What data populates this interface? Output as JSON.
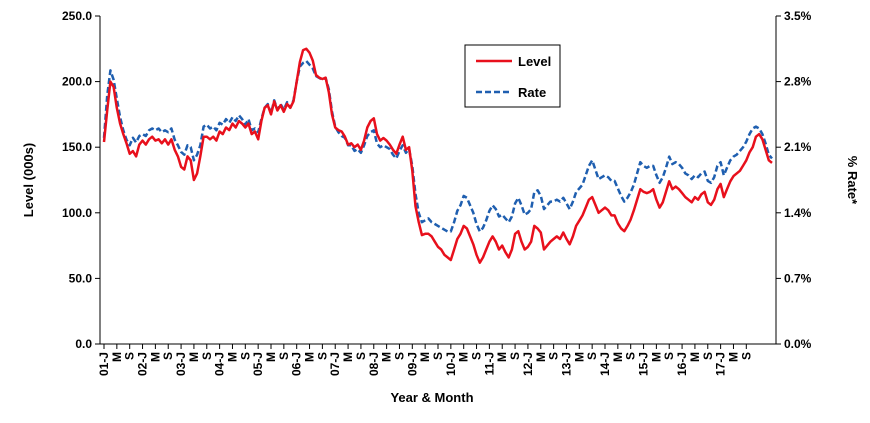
{
  "chart_data": {
    "type": "line",
    "xlabel": "Year & Month",
    "ylabel": "Level (000s)",
    "y2label": "% Rate*",
    "ylim": [
      0,
      250
    ],
    "y2lim": [
      0,
      3.5
    ],
    "y_ticks": [
      "0.0",
      "50.0",
      "100.0",
      "150.0",
      "200.0",
      "250.0"
    ],
    "y2_ticks": [
      "0.0%",
      "0.7%",
      "1.4%",
      "2.1%",
      "2.8%",
      "3.5%"
    ],
    "x_tick_labels": [
      "01-J",
      "M",
      "S",
      "02-J",
      "M",
      "S",
      "03-J",
      "M",
      "S",
      "04-J",
      "M",
      "S",
      "05-J",
      "M",
      "S",
      "06-J",
      "M",
      "S",
      "07-J",
      "M",
      "S",
      "08-J",
      "M",
      "S",
      "09-J",
      "M",
      "S",
      "10-J",
      "M",
      "S",
      "11-J",
      "M",
      "S",
      "12-J",
      "M",
      "S",
      "13-J",
      "M",
      "S",
      "14-J",
      "M",
      "S",
      "15-J",
      "M",
      "S",
      "16-J",
      "M",
      "S",
      "17-J",
      "M",
      "S"
    ],
    "grid": false,
    "legend": "top-center",
    "series": [
      {
        "name": "Level",
        "axis": "left",
        "color": "#e8101c",
        "style": "solid",
        "x_start": "2001-01",
        "values": [
          154,
          178,
          200,
          196,
          180,
          168,
          160,
          153,
          145,
          147,
          143,
          152,
          155,
          152,
          156,
          158,
          155,
          156,
          153,
          156,
          152,
          156,
          148,
          143,
          135,
          133,
          143,
          140,
          125,
          130,
          143,
          158,
          158,
          156,
          158,
          155,
          162,
          160,
          165,
          163,
          168,
          165,
          170,
          168,
          165,
          168,
          160,
          162,
          156,
          170,
          180,
          182,
          175,
          185,
          178,
          182,
          177,
          183,
          180,
          185,
          200,
          215,
          224,
          225,
          222,
          216,
          205,
          203,
          202,
          203,
          192,
          175,
          165,
          163,
          162,
          158,
          152,
          153,
          150,
          152,
          148,
          155,
          165,
          170,
          172,
          160,
          155,
          157,
          155,
          152,
          148,
          145,
          152,
          158,
          148,
          150,
          132,
          105,
          93,
          83,
          84,
          84,
          82,
          78,
          74,
          72,
          68,
          66,
          64,
          72,
          80,
          84,
          90,
          88,
          82,
          76,
          68,
          62,
          66,
          72,
          78,
          82,
          78,
          72,
          75,
          70,
          66,
          72,
          84,
          86,
          78,
          72,
          74,
          78,
          90,
          88,
          85,
          72,
          75,
          78,
          80,
          82,
          80,
          85,
          80,
          76,
          82,
          90,
          94,
          98,
          104,
          110,
          112,
          106,
          100,
          102,
          104,
          102,
          98,
          98,
          92,
          88,
          86,
          90,
          95,
          102,
          110,
          118,
          116,
          115,
          116,
          118,
          110,
          104,
          108,
          116,
          124,
          118,
          120,
          118,
          115,
          112,
          110,
          108,
          112,
          110,
          114,
          116,
          108,
          106,
          110,
          118,
          122,
          112,
          118,
          124,
          128,
          130,
          132,
          136,
          140,
          146,
          150,
          158,
          160,
          156,
          148,
          140,
          138
        ]
      },
      {
        "name": "Rate",
        "axis": "right",
        "color": "#1f5fb0",
        "style": "dashed",
        "x_start": "2001-01",
        "values": [
          2.2,
          2.65,
          2.92,
          2.82,
          2.62,
          2.42,
          2.28,
          2.18,
          2.12,
          2.2,
          2.15,
          2.22,
          2.24,
          2.22,
          2.28,
          2.3,
          2.28,
          2.3,
          2.26,
          2.28,
          2.26,
          2.3,
          2.18,
          2.12,
          2.05,
          2.02,
          2.12,
          2.1,
          1.96,
          2.02,
          2.12,
          2.32,
          2.34,
          2.3,
          2.32,
          2.28,
          2.36,
          2.34,
          2.4,
          2.36,
          2.42,
          2.38,
          2.44,
          2.4,
          2.34,
          2.4,
          2.28,
          2.3,
          2.26,
          2.4,
          2.52,
          2.56,
          2.46,
          2.6,
          2.5,
          2.56,
          2.5,
          2.58,
          2.52,
          2.6,
          2.8,
          2.96,
          3.0,
          3.02,
          2.98,
          2.94,
          2.86,
          2.84,
          2.82,
          2.84,
          2.72,
          2.48,
          2.32,
          2.26,
          2.22,
          2.2,
          2.12,
          2.12,
          2.06,
          2.08,
          2.04,
          2.12,
          2.22,
          2.26,
          2.28,
          2.14,
          2.1,
          2.12,
          2.1,
          2.08,
          2.02,
          1.98,
          2.06,
          2.12,
          2.04,
          2.08,
          1.9,
          1.6,
          1.4,
          1.3,
          1.32,
          1.34,
          1.3,
          1.28,
          1.26,
          1.24,
          1.22,
          1.2,
          1.2,
          1.3,
          1.42,
          1.48,
          1.58,
          1.56,
          1.48,
          1.4,
          1.28,
          1.2,
          1.24,
          1.32,
          1.42,
          1.48,
          1.44,
          1.36,
          1.38,
          1.34,
          1.3,
          1.36,
          1.5,
          1.56,
          1.48,
          1.38,
          1.4,
          1.44,
          1.62,
          1.64,
          1.58,
          1.44,
          1.48,
          1.52,
          1.52,
          1.54,
          1.52,
          1.56,
          1.5,
          1.44,
          1.52,
          1.62,
          1.66,
          1.7,
          1.8,
          1.9,
          1.96,
          1.86,
          1.76,
          1.78,
          1.8,
          1.78,
          1.74,
          1.74,
          1.66,
          1.58,
          1.52,
          1.56,
          1.62,
          1.7,
          1.82,
          1.94,
          1.9,
          1.88,
          1.9,
          1.9,
          1.8,
          1.72,
          1.78,
          1.88,
          2.0,
          1.92,
          1.94,
          1.92,
          1.88,
          1.82,
          1.8,
          1.76,
          1.8,
          1.78,
          1.82,
          1.84,
          1.74,
          1.72,
          1.78,
          1.9,
          1.94,
          1.8,
          1.88,
          1.96,
          2.0,
          2.02,
          2.06,
          2.1,
          2.16,
          2.24,
          2.3,
          2.32,
          2.3,
          2.24,
          2.14,
          2.02,
          1.98
        ]
      }
    ]
  }
}
